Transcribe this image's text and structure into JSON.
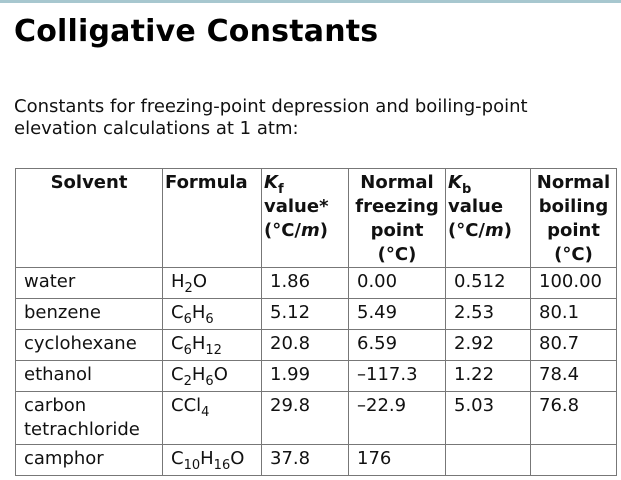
{
  "page": {
    "title": "Colligative Constants",
    "intro": "Constants for freezing-point depression and boiling-point elevation calculations at 1 atm:"
  },
  "table": {
    "headers": {
      "solvent": "Solvent",
      "formula": "Formula",
      "kf": {
        "k": "K",
        "sub": "f",
        "l2": "value*",
        "l3a": "(°C/",
        "l3m": "m",
        "l3b": ")"
      },
      "nfp": {
        "l1": "Normal",
        "l2": "freezing",
        "l3": "point",
        "l4": "(°C)"
      },
      "kb": {
        "k": "K",
        "sub": "b",
        "l2": "value",
        "l3a": "(°C/",
        "l3m": "m",
        "l3b": ")"
      },
      "nbp": {
        "l1": "Normal",
        "l2": "boiling",
        "l3": "point",
        "l4": "(°C)"
      }
    },
    "rows": [
      {
        "solvent": "water",
        "formula": [
          "H",
          "2",
          "O"
        ],
        "kf": "1.86",
        "fp": "0.00",
        "kb": "0.512",
        "bp": "100.00"
      },
      {
        "solvent": "benzene",
        "formula": [
          "C",
          "6",
          "H",
          "6"
        ],
        "kf": "5.12",
        "fp": "5.49",
        "kb": "2.53",
        "bp": "80.1"
      },
      {
        "solvent": "cyclohexane",
        "formula": [
          "C",
          "6",
          "H",
          "12"
        ],
        "kf": "20.8",
        "fp": "6.59",
        "kb": "2.92",
        "bp": "80.7"
      },
      {
        "solvent": "ethanol",
        "formula": [
          "C",
          "2",
          "H",
          "6",
          "O"
        ],
        "kf": "1.99",
        "fp": "–117.3",
        "kb": "1.22",
        "bp": "78.4"
      },
      {
        "solvent": "carbon tetrachloride",
        "formula": [
          "CCl",
          "4"
        ],
        "kf": "29.8",
        "fp": "–22.9",
        "kb": "5.03",
        "bp": "76.8"
      },
      {
        "solvent": "camphor",
        "formula": [
          "C",
          "10",
          "H",
          "16",
          "O"
        ],
        "kf": "37.8",
        "fp": "176",
        "kb": "",
        "bp": ""
      }
    ]
  }
}
